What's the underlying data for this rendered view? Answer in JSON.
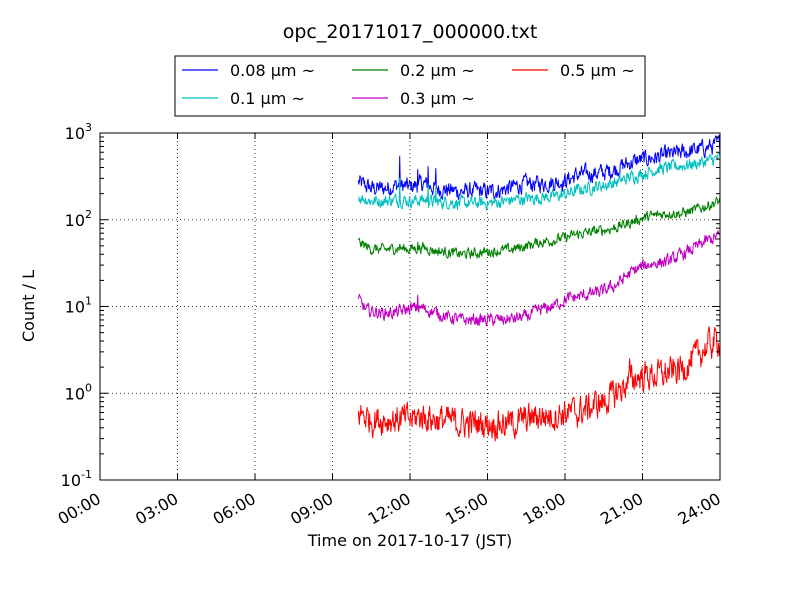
{
  "chart_data": {
    "type": "line",
    "title": "opc_20171017_000000.txt",
    "xlabel": "Time on 2017-10-17 (JST)",
    "ylabel": "Count / L",
    "xlim": [
      "00:00",
      "24:00"
    ],
    "ylim": [
      0.1,
      1000
    ],
    "yscale": "log",
    "grid": true,
    "legend_position": "top",
    "x_ticks": [
      "00:00",
      "03:00",
      "06:00",
      "09:00",
      "12:00",
      "15:00",
      "18:00",
      "21:00",
      "24:00"
    ],
    "y_ticks": [
      {
        "base": "10",
        "exp": "-1",
        "value": 0.1
      },
      {
        "base": "10",
        "exp": "0",
        "value": 1
      },
      {
        "base": "10",
        "exp": "1",
        "value": 10
      },
      {
        "base": "10",
        "exp": "2",
        "value": 100
      },
      {
        "base": "10",
        "exp": "3",
        "value": 1000
      }
    ],
    "series": [
      {
        "name": "0.08 μm ~",
        "color": "#0000ff",
        "noise": 0.08,
        "points": [
          [
            10.0,
            270
          ],
          [
            10.5,
            230
          ],
          [
            11.0,
            230
          ],
          [
            11.5,
            250
          ],
          [
            12.0,
            240
          ],
          [
            12.5,
            260
          ],
          [
            13.0,
            230
          ],
          [
            13.5,
            220
          ],
          [
            14.0,
            210
          ],
          [
            14.5,
            215
          ],
          [
            15.0,
            210
          ],
          [
            15.5,
            220
          ],
          [
            16.0,
            240
          ],
          [
            16.5,
            260
          ],
          [
            17.0,
            260
          ],
          [
            17.5,
            270
          ],
          [
            18.0,
            280
          ],
          [
            18.5,
            330
          ],
          [
            19.0,
            340
          ],
          [
            19.5,
            350
          ],
          [
            20.0,
            390
          ],
          [
            20.5,
            450
          ],
          [
            21.0,
            500
          ],
          [
            21.5,
            520
          ],
          [
            22.0,
            560
          ],
          [
            22.5,
            590
          ],
          [
            23.0,
            630
          ],
          [
            23.5,
            680
          ],
          [
            24.0,
            750
          ]
        ],
        "spikes": [
          [
            11.6,
            540
          ],
          [
            12.3,
            380
          ],
          [
            12.7,
            410
          ],
          [
            13.0,
            390
          ]
        ]
      },
      {
        "name": "0.1 μm ~",
        "color": "#00bfbf",
        "noise": 0.06,
        "points": [
          [
            10.0,
            185
          ],
          [
            10.5,
            165
          ],
          [
            11.0,
            165
          ],
          [
            11.5,
            170
          ],
          [
            12.0,
            165
          ],
          [
            12.5,
            170
          ],
          [
            13.0,
            160
          ],
          [
            13.5,
            160
          ],
          [
            14.0,
            155
          ],
          [
            14.5,
            155
          ],
          [
            15.0,
            155
          ],
          [
            15.5,
            160
          ],
          [
            16.0,
            170
          ],
          [
            16.5,
            175
          ],
          [
            17.0,
            180
          ],
          [
            17.5,
            185
          ],
          [
            18.0,
            195
          ],
          [
            18.5,
            220
          ],
          [
            19.0,
            235
          ],
          [
            19.5,
            250
          ],
          [
            20.0,
            270
          ],
          [
            20.5,
            310
          ],
          [
            21.0,
            340
          ],
          [
            21.5,
            380
          ],
          [
            22.0,
            400
          ],
          [
            22.5,
            420
          ],
          [
            23.0,
            440
          ],
          [
            23.5,
            470
          ],
          [
            24.0,
            520
          ]
        ],
        "spikes": [
          [
            11.6,
            300
          ],
          [
            12.7,
            260
          ],
          [
            13.0,
            240
          ]
        ]
      },
      {
        "name": "0.2 μm ~",
        "color": "#007f00",
        "noise": 0.05,
        "points": [
          [
            10.0,
            55
          ],
          [
            10.5,
            46
          ],
          [
            11.0,
            45
          ],
          [
            11.5,
            47
          ],
          [
            12.0,
            46
          ],
          [
            12.5,
            48
          ],
          [
            13.0,
            44
          ],
          [
            13.5,
            42
          ],
          [
            14.0,
            40
          ],
          [
            14.5,
            41
          ],
          [
            15.0,
            43
          ],
          [
            15.5,
            44
          ],
          [
            16.0,
            46
          ],
          [
            16.5,
            50
          ],
          [
            17.0,
            55
          ],
          [
            17.5,
            58
          ],
          [
            18.0,
            62
          ],
          [
            18.5,
            68
          ],
          [
            19.0,
            72
          ],
          [
            19.5,
            76
          ],
          [
            20.0,
            82
          ],
          [
            20.5,
            92
          ],
          [
            21.0,
            105
          ],
          [
            21.5,
            112
          ],
          [
            22.0,
            120
          ],
          [
            22.5,
            118
          ],
          [
            23.0,
            128
          ],
          [
            23.5,
            145
          ],
          [
            24.0,
            165
          ]
        ],
        "spikes": [
          [
            12.3,
            55
          ],
          [
            11.6,
            52
          ]
        ]
      },
      {
        "name": "0.3 μm ~",
        "color": "#bf00bf",
        "noise": 0.06,
        "points": [
          [
            10.0,
            12
          ],
          [
            10.3,
            9
          ],
          [
            11.0,
            8.4
          ],
          [
            11.5,
            8.5
          ],
          [
            12.0,
            9.5
          ],
          [
            12.5,
            9.5
          ],
          [
            13.0,
            8.5
          ],
          [
            13.5,
            7.5
          ],
          [
            14.0,
            7.0
          ],
          [
            14.5,
            7.0
          ],
          [
            15.0,
            7.0
          ],
          [
            15.5,
            7.0
          ],
          [
            16.0,
            7.2
          ],
          [
            16.5,
            7.6
          ],
          [
            17.0,
            9.0
          ],
          [
            17.5,
            10
          ],
          [
            18.0,
            12
          ],
          [
            18.5,
            13
          ],
          [
            19.0,
            14
          ],
          [
            19.5,
            15
          ],
          [
            20.0,
            18
          ],
          [
            20.5,
            24
          ],
          [
            21.0,
            29
          ],
          [
            21.5,
            32
          ],
          [
            22.0,
            33
          ],
          [
            22.5,
            39
          ],
          [
            23.0,
            47
          ],
          [
            23.5,
            57
          ],
          [
            24.0,
            65
          ]
        ],
        "spikes": [
          [
            12.3,
            13.5
          ]
        ]
      },
      {
        "name": "0.5 μm ~",
        "color": "#ff0000",
        "noise": 0.14,
        "points": [
          [
            10.0,
            0.6
          ],
          [
            10.5,
            0.5
          ],
          [
            11.0,
            0.5
          ],
          [
            11.5,
            0.5
          ],
          [
            12.0,
            0.5
          ],
          [
            12.5,
            0.55
          ],
          [
            13.0,
            0.5
          ],
          [
            13.5,
            0.48
          ],
          [
            14.0,
            0.45
          ],
          [
            14.5,
            0.45
          ],
          [
            15.0,
            0.45
          ],
          [
            15.5,
            0.45
          ],
          [
            16.0,
            0.45
          ],
          [
            16.5,
            0.5
          ],
          [
            17.0,
            0.55
          ],
          [
            17.5,
            0.55
          ],
          [
            18.0,
            0.6
          ],
          [
            18.5,
            0.6
          ],
          [
            19.0,
            0.7
          ],
          [
            19.5,
            0.8
          ],
          [
            20.0,
            1.0
          ],
          [
            20.5,
            1.4
          ],
          [
            21.0,
            1.6
          ],
          [
            21.5,
            1.6
          ],
          [
            22.0,
            1.7
          ],
          [
            22.5,
            1.9
          ],
          [
            23.0,
            2.5
          ],
          [
            23.5,
            3.5
          ],
          [
            24.0,
            4.2
          ]
        ],
        "spikes": [
          [
            20.5,
            2.5
          ]
        ]
      }
    ]
  }
}
